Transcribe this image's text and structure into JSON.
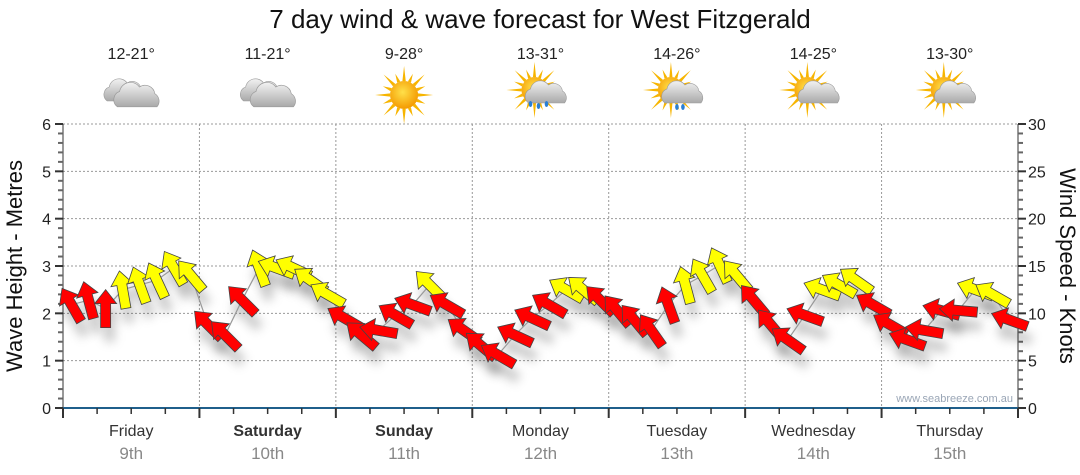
{
  "chart_data": {
    "type": "scatter",
    "title": "7 day wind & wave forecast for West Fitzgerald",
    "ylabel_left": "Wave Height - Metres",
    "ylabel_right": "Wind Speed - Knots",
    "ylim_left": [
      0,
      6
    ],
    "ylim_right": [
      0,
      30
    ],
    "yticks_left": [
      "0",
      "1",
      "2",
      "3",
      "4",
      "5",
      "6"
    ],
    "yticks_right": [
      "0",
      "5",
      "10",
      "15",
      "20",
      "25",
      "30"
    ],
    "grid": true,
    "watermark": "www.seabreeze.com.au",
    "yellow_threshold_knots": 12,
    "colors": {
      "calm": "#ff0000",
      "strong": "#ffff00",
      "axis": "#1f5f8b",
      "grid": "#999999"
    },
    "days": [
      {
        "day": "Friday",
        "date": "9th",
        "bold": false,
        "temp": "12-21°",
        "icon": "cloudy-icon"
      },
      {
        "day": "Saturday",
        "date": "10th",
        "bold": true,
        "temp": "11-21°",
        "icon": "cloudy-icon"
      },
      {
        "day": "Sunday",
        "date": "11th",
        "bold": true,
        "temp": "9-28°",
        "icon": "sunny-icon"
      },
      {
        "day": "Monday",
        "date": "12th",
        "bold": false,
        "temp": "13-31°",
        "icon": "sun-rain-icon"
      },
      {
        "day": "Tuesday",
        "date": "13th",
        "bold": false,
        "temp": "14-26°",
        "icon": "sun-shower-icon"
      },
      {
        "day": "Wednesday",
        "date": "14th",
        "bold": false,
        "temp": "14-25°",
        "icon": "partly-cloudy-icon"
      },
      {
        "day": "Thursday",
        "date": "15th",
        "bold": false,
        "temp": "13-30°",
        "icon": "partly-cloudy-icon"
      }
    ],
    "wind_knots": [
      10.9,
      11.4,
      10.5,
      12.5,
      13,
      13.5,
      14.8,
      14,
      8.8,
      7.7,
      11.4,
      14.8,
      14.8,
      14.8,
      13.5,
      12,
      9.5,
      7.7,
      8.2,
      9.8,
      10.9,
      13,
      10.9,
      8.2,
      6.6,
      5.6,
      7.7,
      9.5,
      10.9,
      12.5,
      12.5,
      11.4,
      10.3,
      9.3,
      8.2,
      10.9,
      13,
      14,
      15.1,
      14,
      11.4,
      8.8,
      7.2,
      9.8,
      12.5,
      13,
      13.5,
      10.9,
      8.8,
      7.2,
      8.2,
      10.3,
      10.3,
      12.5,
      12,
      9.3
    ],
    "arrow_heading_deg": [
      330,
      345,
      0,
      350,
      340,
      335,
      330,
      320,
      315,
      315,
      315,
      340,
      290,
      295,
      305,
      300,
      300,
      310,
      280,
      300,
      290,
      315,
      300,
      305,
      310,
      300,
      295,
      295,
      300,
      300,
      310,
      315,
      320,
      320,
      325,
      340,
      345,
      330,
      335,
      320,
      320,
      320,
      305,
      290,
      290,
      300,
      305,
      300,
      300,
      290,
      280,
      285,
      275,
      290,
      300,
      290
    ],
    "interval_hours": 3
  }
}
